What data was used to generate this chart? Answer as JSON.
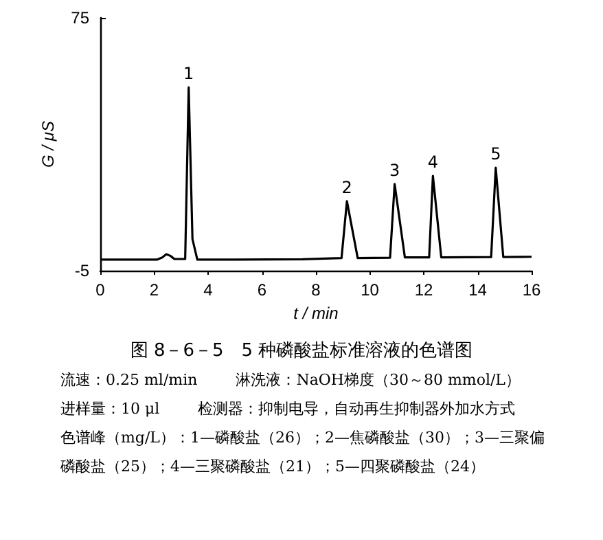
{
  "chart_data": {
    "type": "line",
    "title": "图 8－6－5　5 种磷酸盐标准溶液的色谱图",
    "xlabel": "t / min",
    "ylabel": "G / μS",
    "x": [
      0,
      2.1,
      2.3,
      2.45,
      2.6,
      2.75,
      3.15,
      3.28,
      3.42,
      3.6,
      5,
      7.5,
      8.95,
      9.15,
      9.55,
      10.75,
      10.92,
      11.3,
      12.2,
      12.34,
      12.65,
      14.5,
      14.67,
      14.95,
      16
    ],
    "series": [
      {
        "color": "#000000",
        "values": [
          -1.5,
          -1.5,
          -0.8,
          0.2,
          -0.3,
          -1.3,
          -1.3,
          53,
          5,
          -1.5,
          -1.5,
          -1.4,
          -1.0,
          17,
          -1.0,
          -0.9,
          22.4,
          -0.8,
          -0.8,
          25,
          -0.8,
          -0.7,
          27.6,
          -0.7,
          -0.6
        ]
      }
    ],
    "xlim": [
      0,
      16
    ],
    "xticks": [
      0,
      2,
      4,
      6,
      8,
      10,
      12,
      14,
      16
    ],
    "ylim": [
      -5,
      75
    ],
    "yticks": [
      -5,
      75
    ],
    "grid": false,
    "marker": "none",
    "line_style": "solid",
    "annotations": [
      {
        "text": "1",
        "x": 3.28,
        "y": 53
      },
      {
        "text": "2",
        "x": 9.15,
        "y": 17
      },
      {
        "text": "3",
        "x": 10.92,
        "y": 22.4
      },
      {
        "text": "4",
        "x": 12.34,
        "y": 25
      },
      {
        "text": "5",
        "x": 14.67,
        "y": 27.6
      },
      "流速：0.25 ml/min",
      "淋洗液：NaOH梯度（30～80 mmol/L）",
      "进样量：10 μl",
      "检测器：抑制电导，自动再生抑制器外加水方式",
      "色谱峰（mg/L）：1—磷酸盐（26）；2—焦磷酸盐（30）；3—三聚偏",
      "磷酸盐（25）；4—三聚磷酸盐（21）；5—四聚磷酸盐（24）"
    ]
  }
}
